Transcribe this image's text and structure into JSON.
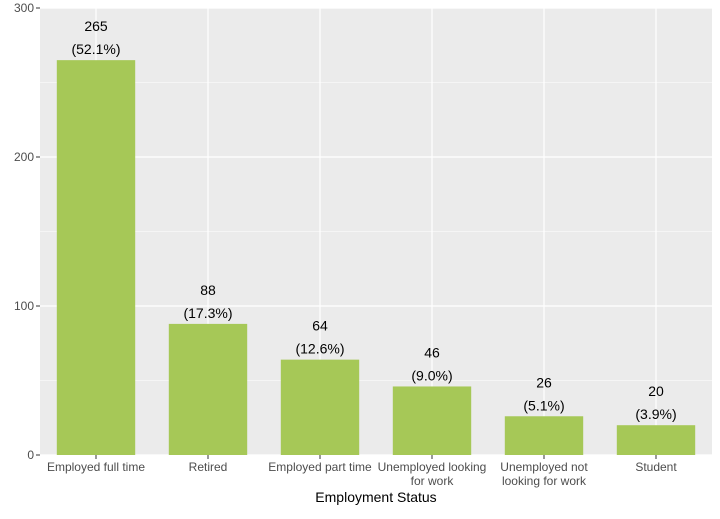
{
  "chart_data": {
    "type": "bar",
    "categories": [
      [
        "Employed full time"
      ],
      [
        "Retired"
      ],
      [
        "Employed part time"
      ],
      [
        "Unemployed looking",
        "for work"
      ],
      [
        "Unemployed not",
        "looking for work"
      ],
      [
        "Student"
      ]
    ],
    "values": [
      265,
      88,
      64,
      46,
      26,
      20
    ],
    "percent_labels": [
      "(52.1%)",
      "(17.3%)",
      "(12.6%)",
      "(9.0%)",
      "(5.1%)",
      "(3.9%)"
    ],
    "value_labels": [
      "265",
      "88",
      "64",
      "46",
      "26",
      "20"
    ],
    "xlabel": "Employment Status",
    "ylabel": "",
    "ylim": [
      0,
      300
    ],
    "y_ticks": [
      0,
      100,
      200,
      300
    ],
    "y_tick_labels": [
      "0",
      "100",
      "200",
      "300"
    ],
    "grid": true,
    "legend": "none",
    "colors": {
      "bar": "#a6c857",
      "panel": "#ebebeb",
      "grid": "#ffffff"
    }
  }
}
